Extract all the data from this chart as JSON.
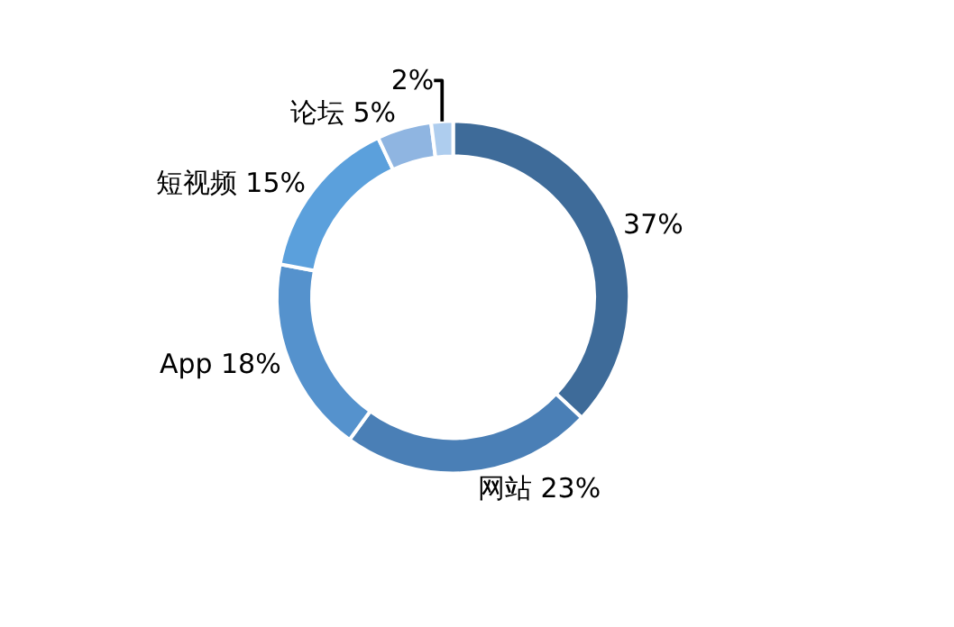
{
  "chart_data": {
    "type": "donut",
    "categories": [
      null,
      "网站",
      "App",
      "短视频",
      "论坛",
      null
    ],
    "values": [
      37,
      23,
      18,
      15,
      5,
      2
    ],
    "colors": [
      "#3e6b99",
      "#4a7fb6",
      "#5592cd",
      "#5ba0dc",
      "#8fb5e1",
      "#aecdee"
    ],
    "value_labels": [
      "37%",
      "23%",
      "18%",
      "15%",
      "5%",
      "2%"
    ]
  }
}
